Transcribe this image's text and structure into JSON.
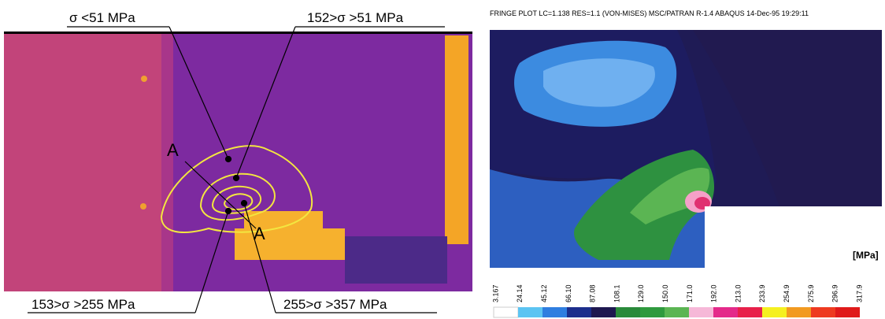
{
  "left_panel": {
    "annotations": [
      "σ <51 MPa",
      "152>σ >51 MPa",
      "153>σ >255 MPa",
      "255>σ >357 MPa"
    ],
    "section_labels": [
      "A",
      "A"
    ]
  },
  "right_panel": {
    "header": "FRINGE PLOT  LC=1.138 RES=1.1 (VON-MISES) MSC/PATRAN R-1.4 ABAQUS 14-Dec-95 19:29:11",
    "unit": "[MPa]",
    "scale_labels": [
      "3.167",
      "24.14",
      "45.12",
      "66.10",
      "87.08",
      "108.1",
      "129.0",
      "150.0",
      "171.0",
      "192.0",
      "213.0",
      "233.9",
      "254.9",
      "275.9",
      "296.9",
      "317.9"
    ]
  }
}
